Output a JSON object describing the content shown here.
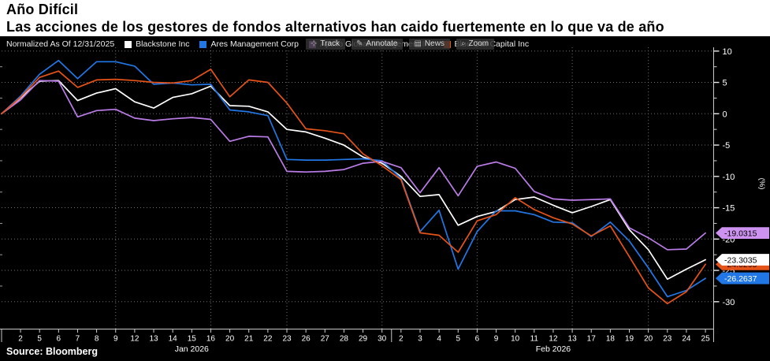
{
  "header": {
    "title": "Año Difícil",
    "subtitle": "Las acciones de los gestores de fondos alternativos han caido fuertemente en lo que va de año"
  },
  "legend": {
    "normalized_label": "Normalized As Of 12/31/2025",
    "items": [
      {
        "label": "Blackstone Inc",
        "color": "#ffffff"
      },
      {
        "label": "Ares Management Corp",
        "color": "#2277e6"
      },
      {
        "label": "Apollo Global Management Inc",
        "color": "#c87cea"
      },
      {
        "label": "Blue Owl Capital Inc",
        "color": "#e65318"
      }
    ]
  },
  "toolbar": {
    "items": [
      {
        "icon": "⊹",
        "icon_name": "track-crosshair-icon",
        "label": "Track"
      },
      {
        "icon": "✎",
        "icon_name": "annotate-pencil-icon",
        "label": "Annotate"
      },
      {
        "icon": "▤",
        "icon_name": "news-icon",
        "label": "News"
      },
      {
        "icon": "⌕",
        "icon_name": "zoom-magnifier-icon",
        "label": "Zoom"
      }
    ]
  },
  "source_text": "Source: Bloomberg",
  "chart_data": {
    "type": "line",
    "title": "Año Difícil",
    "ylabel": "(%)",
    "ylim": [
      -32,
      11
    ],
    "grid": true,
    "legend_position": "top",
    "y_ticks": [
      10,
      5,
      0,
      -5,
      -10,
      -15,
      -20,
      -25,
      -30
    ],
    "x": [
      "12/31",
      "01/02",
      "01/05",
      "01/06",
      "01/07",
      "01/08",
      "01/09",
      "01/12",
      "01/13",
      "01/14",
      "01/15",
      "01/16",
      "01/20",
      "01/21",
      "01/22",
      "01/23",
      "01/26",
      "01/27",
      "01/28",
      "01/29",
      "01/30",
      "02/02",
      "02/03",
      "02/04",
      "02/05",
      "02/06",
      "02/09",
      "02/10",
      "02/11",
      "02/12",
      "02/13",
      "02/17",
      "02/18",
      "02/19",
      "02/20",
      "02/23",
      "02/24",
      "02/25"
    ],
    "x_tick_labels": [
      "",
      "2",
      "5",
      "6",
      "7",
      "8",
      "9",
      "12",
      "13",
      "14",
      "15",
      "16",
      "20",
      "21",
      "22",
      "23",
      "26",
      "27",
      "28",
      "29",
      "30",
      "2",
      "3",
      "4",
      "5",
      "6",
      "9",
      "10",
      "11",
      "12",
      "13",
      "17",
      "18",
      "19",
      "20",
      "23",
      "24",
      "25"
    ],
    "month_labels": [
      {
        "label": "Jan 2026",
        "at_index": 10
      },
      {
        "label": "Feb 2026",
        "at_index": 29
      }
    ],
    "week_grid_indices": [
      6,
      11,
      15,
      20,
      25,
      30,
      34
    ],
    "month_separator_index": 20.5,
    "series": [
      {
        "name": "Blackstone Inc",
        "color": "#ffffff",
        "label_bg": "#ffffff",
        "label_fg": "#000000",
        "last_label": "-23.3035",
        "values": [
          0,
          2.5,
          5.2,
          5.3,
          2.1,
          3.3,
          4.0,
          1.9,
          0.9,
          2.6,
          3.2,
          4.4,
          1.3,
          1.2,
          0.3,
          -2.5,
          -2.9,
          -3.9,
          -5.0,
          -6.9,
          -7.9,
          -10.0,
          -13.2,
          -12.9,
          -17.8,
          -16.4,
          -15.6,
          -13.7,
          -13.3,
          -14.6,
          -15.8,
          -14.8,
          -13.7,
          -18.5,
          -21.7,
          -26.4,
          -24.8,
          -23.3
        ]
      },
      {
        "name": "Ares Management Corp",
        "color": "#2277e6",
        "label_bg": "#2277e6",
        "label_fg": "#ffffff",
        "last_label": "-26.2637",
        "values": [
          0,
          2.8,
          6.3,
          8.5,
          5.6,
          8.3,
          8.3,
          7.6,
          4.7,
          4.9,
          4.6,
          4.7,
          0.6,
          0.3,
          -0.3,
          -7.3,
          -7.4,
          -7.4,
          -7.3,
          -7.2,
          -7.5,
          -10.3,
          -18.8,
          -15.4,
          -24.8,
          -18.8,
          -15.5,
          -15.5,
          -16.1,
          -17.3,
          -17.4,
          -19.6,
          -17.3,
          -20.3,
          -24.6,
          -29.2,
          -28.2,
          -26.26
        ]
      },
      {
        "name": "Apollo Global Management Inc",
        "color": "#bb7ce8",
        "label_bg": "#cd92f0",
        "label_fg": "#000000",
        "last_label": "-19.0315",
        "values": [
          0,
          2.2,
          5.3,
          5.2,
          -0.5,
          0.5,
          0.7,
          -0.7,
          -1.1,
          -0.8,
          -0.6,
          -0.9,
          -4.4,
          -3.6,
          -3.7,
          -9.2,
          -9.3,
          -9.2,
          -8.9,
          -7.9,
          -7.6,
          -8.6,
          -12.6,
          -8.6,
          -13.1,
          -8.4,
          -7.7,
          -8.7,
          -12.4,
          -13.6,
          -13.8,
          -13.7,
          -13.6,
          -18.2,
          -19.8,
          -21.7,
          -21.6,
          -19.03
        ]
      },
      {
        "name": "Blue Owl Capital Inc",
        "color": "#e65318",
        "label_bg": "#e65318",
        "label_fg": "#1a0a00",
        "last_label": "-24.0295",
        "values": [
          0,
          2.6,
          5.8,
          6.8,
          4.2,
          5.4,
          5.5,
          5.3,
          5.0,
          4.9,
          5.3,
          7.1,
          2.7,
          5.4,
          5.0,
          1.7,
          -2.4,
          -2.7,
          -3.2,
          -6.4,
          -8.3,
          -10.5,
          -19.0,
          -19.4,
          -22.1,
          -17.1,
          -16.1,
          -13.4,
          -15.3,
          -16.6,
          -17.6,
          -19.5,
          -17.9,
          -22.8,
          -27.8,
          -30.3,
          -28.4,
          -24.03
        ]
      }
    ]
  }
}
